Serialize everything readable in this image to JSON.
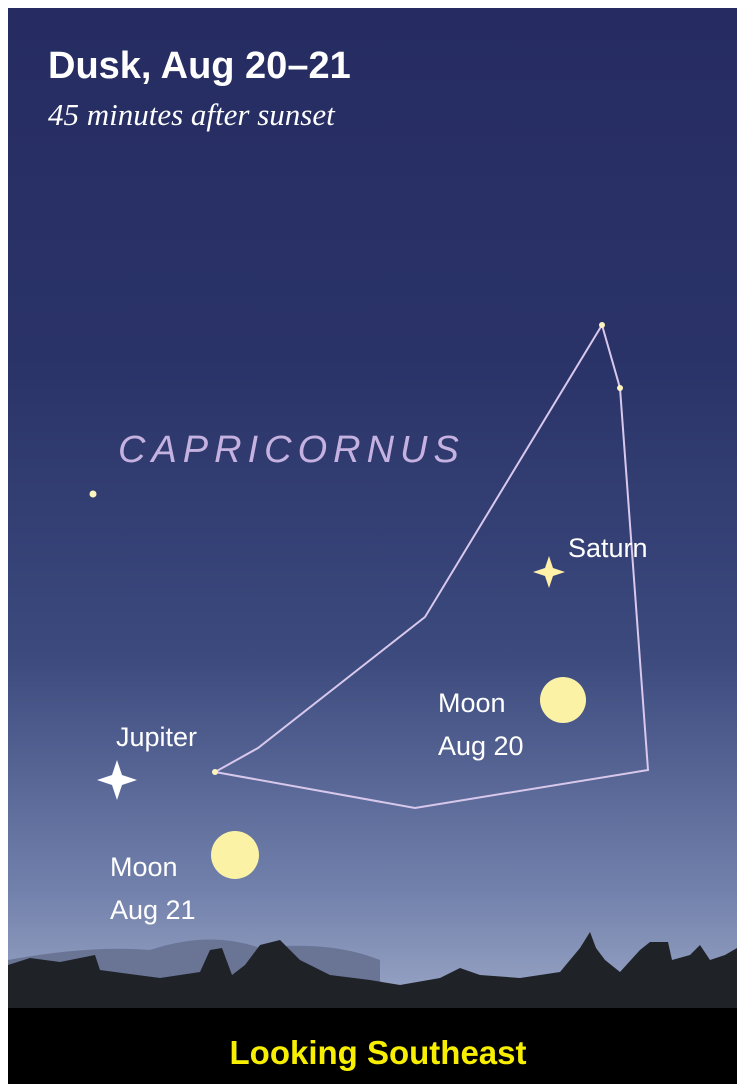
{
  "header": {
    "title": "Dusk, Aug 20–21",
    "subtitle": "45 minutes after sunset"
  },
  "labels": {
    "constellation": "CAPRICORNUS",
    "saturn": "Saturn",
    "moon_aug20": [
      "Moon",
      "Aug 20"
    ],
    "jupiter": "Jupiter",
    "moon_aug21": [
      "Moon",
      "Aug 21"
    ]
  },
  "footer": "Looking Southeast"
}
